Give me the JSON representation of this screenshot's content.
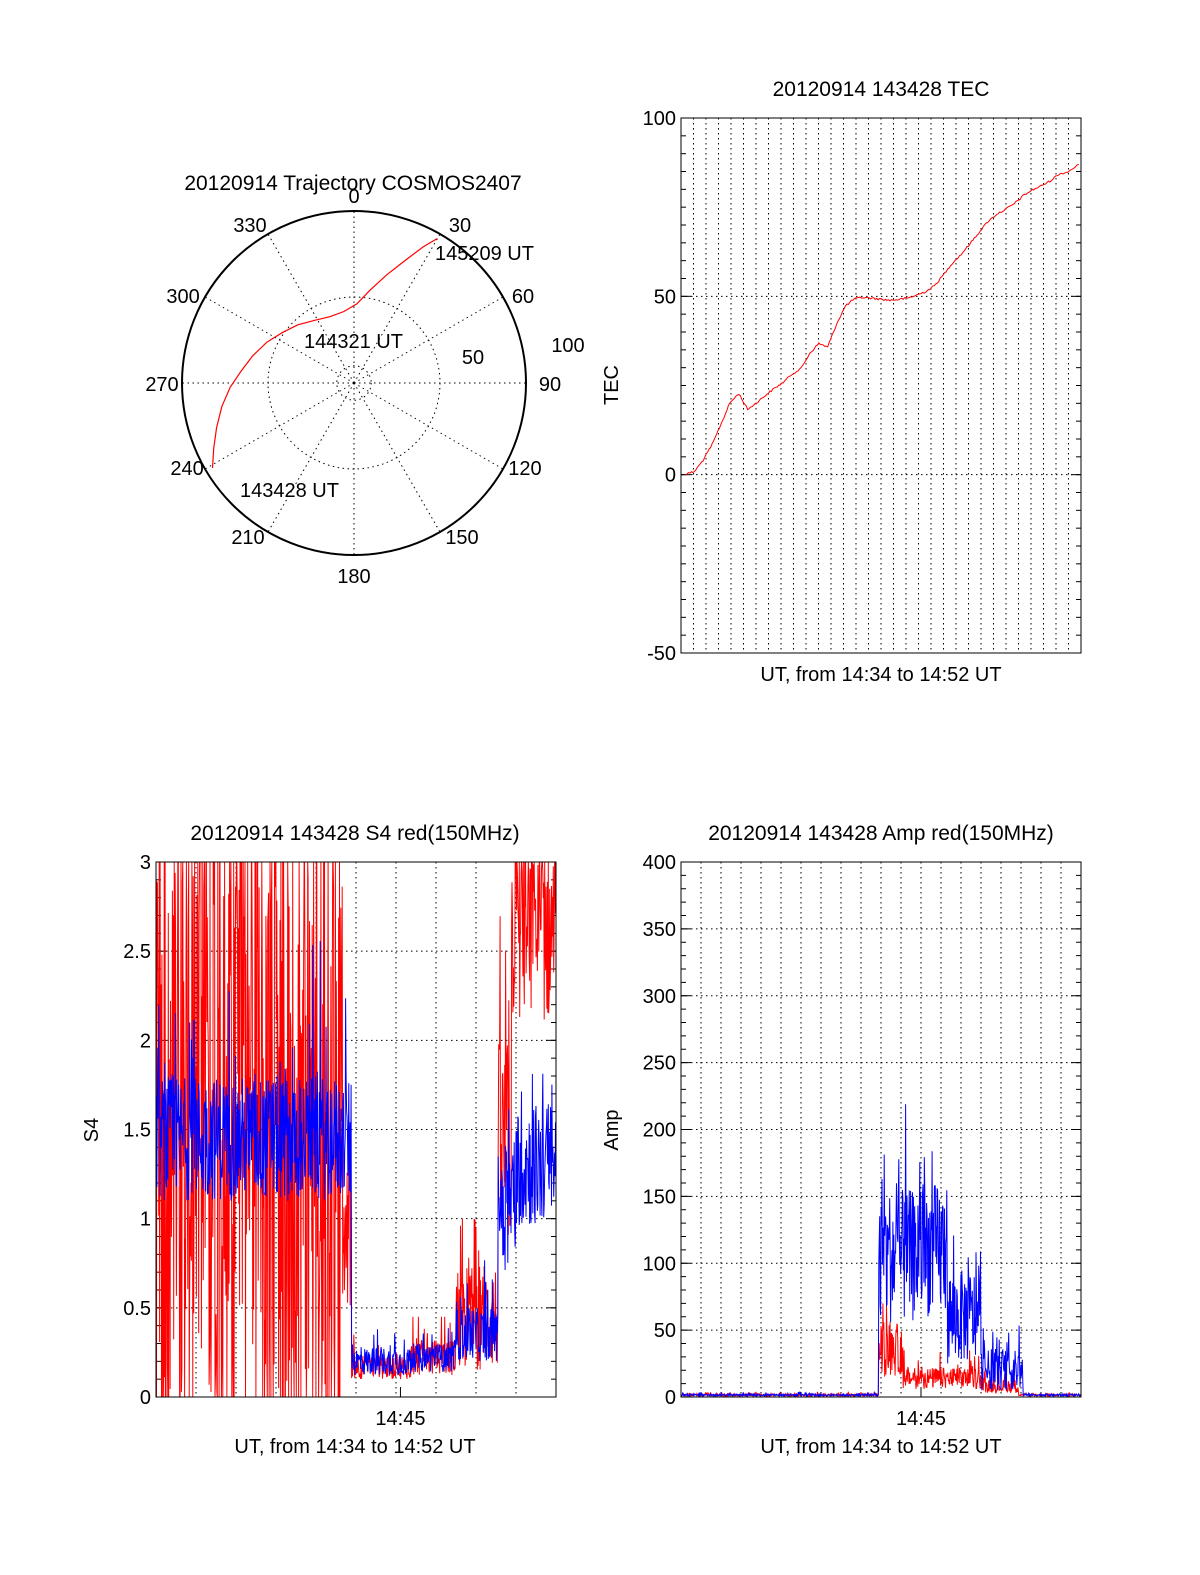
{
  "colors": {
    "red": "#ff0000",
    "blue": "#0000ff",
    "axis": "#000000"
  },
  "chart_data": [
    {
      "id": "trajectory",
      "type": "scatter",
      "subtype": "polar",
      "title": "20120914 Trajectory COSMOS2407",
      "azimuth_labels": [
        "0",
        "30",
        "60",
        "90",
        "120",
        "150",
        "180",
        "210",
        "240",
        "270",
        "300",
        "330"
      ],
      "radial_labels": [
        "50",
        "100"
      ],
      "rlim": [
        0,
        100
      ],
      "grid": true,
      "annotations": [
        {
          "text": "145209 UT",
          "azimuth": 30,
          "distance": 98
        },
        {
          "text": "144321 UT",
          "azimuth": 335,
          "distance": 30
        },
        {
          "text": "143428 UT",
          "azimuth": 240,
          "distance": 98
        }
      ],
      "series": [
        {
          "color": "#ff0000",
          "azimuth": [
            239,
            245,
            252,
            260,
            268,
            276,
            285,
            295,
            305,
            316,
            328,
            340,
            352,
            2,
            10,
            17,
            23,
            27,
            30
          ],
          "distance": [
            96,
            90,
            84,
            78,
            72,
            66,
            61,
            56,
            51,
            47,
            43,
            41,
            42,
            46,
            55,
            66,
            78,
            89,
            97
          ]
        }
      ]
    },
    {
      "id": "tec",
      "type": "line",
      "title": "20120914 143428 TEC",
      "ylabel": "TEC",
      "xlabel": "UT, from 14:34 to 14:52 UT",
      "ylim": [
        -50,
        100
      ],
      "yticks": [
        "-50",
        "0",
        "50",
        "100"
      ],
      "ytick_values": [
        -50,
        0,
        50,
        100
      ],
      "xlim": [
        0,
        18
      ],
      "xtick_labels": [],
      "grid": true,
      "series": [
        {
          "color": "#ff0000",
          "x": [
            0.2,
            0.6,
            1.0,
            1.4,
            1.8,
            2.2,
            2.6,
            3.0,
            3.4,
            3.8,
            4.2,
            4.6,
            5.0,
            5.4,
            5.8,
            6.2,
            6.6,
            7.0,
            7.4,
            7.8,
            8.2,
            8.6,
            9.0,
            9.4,
            9.8,
            10.2,
            10.6,
            11.0,
            11.4,
            11.8,
            12.2,
            12.6,
            13.0,
            13.4,
            13.8,
            14.2,
            14.6,
            15.0,
            15.4,
            15.8,
            16.2,
            16.6,
            17.0,
            17.4,
            17.9
          ],
          "y": [
            0,
            1,
            4,
            8,
            14,
            20,
            23,
            18,
            20,
            22,
            24,
            26,
            28,
            30,
            34,
            37,
            36,
            42,
            47,
            49,
            50,
            49.5,
            49,
            49,
            49.3,
            49.6,
            50,
            51,
            53,
            56,
            59,
            62,
            65,
            68,
            71,
            73,
            74,
            76,
            78,
            80,
            81,
            82,
            84,
            85,
            87
          ]
        }
      ]
    },
    {
      "id": "s4",
      "type": "line",
      "title": "20120914 143428 S4 red(150MHz)",
      "ylabel": "S4",
      "xlabel": "UT, from 14:34 to 14:52 UT",
      "ylim": [
        0,
        3
      ],
      "yticks": [
        "0",
        "0.5",
        "1",
        "1.5",
        "2",
        "2.5",
        "3"
      ],
      "ytick_values": [
        0,
        0.5,
        1,
        1.5,
        2,
        2.5,
        3
      ],
      "xlim": [
        0,
        18
      ],
      "xtick_labels": [
        {
          "x": 11,
          "label": "14:45"
        }
      ],
      "grid": true,
      "series": [
        {
          "color": "#ff0000",
          "segments": [
            {
              "x0": 0.0,
              "x1": 8.4,
              "base": 1.45,
              "amp": 1.5,
              "floor": 0,
              "ceil": 3,
              "spike": 0.22
            },
            {
              "x0": 8.4,
              "x1": 8.8,
              "base": 0.9,
              "amp": 0.4,
              "floor": 0.3,
              "ceil": 2.4,
              "spike": 0
            },
            {
              "x0": 8.8,
              "x1": 11.5,
              "base": 0.17,
              "amp": 0.07,
              "floor": 0.05,
              "ceil": 0.35,
              "spike": 0
            },
            {
              "x0": 11.5,
              "x1": 13.5,
              "base": 0.22,
              "amp": 0.1,
              "floor": 0.05,
              "ceil": 0.45,
              "spike": 0
            },
            {
              "x0": 13.5,
              "x1": 15.4,
              "base": 0.45,
              "amp": 0.3,
              "floor": 0.1,
              "ceil": 1.0,
              "spike": 0
            },
            {
              "x0": 15.4,
              "x1": 16.0,
              "base": 1.4,
              "amp": 0.6,
              "floor": 0.5,
              "ceil": 3,
              "spike": 0
            },
            {
              "x0": 16.0,
              "x1": 18.0,
              "base": 2.6,
              "amp": 0.5,
              "floor": 1.4,
              "ceil": 3,
              "spike": 0
            }
          ]
        },
        {
          "color": "#0000ff",
          "segments": [
            {
              "x0": 0.0,
              "x1": 8.8,
              "base": 1.45,
              "amp": 0.35,
              "floor": 0.9,
              "ceil": 2.7,
              "spike": 0
            },
            {
              "x0": 8.8,
              "x1": 11.5,
              "base": 0.2,
              "amp": 0.08,
              "floor": 0.1,
              "ceil": 0.38,
              "spike": 0
            },
            {
              "x0": 11.5,
              "x1": 13.5,
              "base": 0.22,
              "amp": 0.08,
              "floor": 0.1,
              "ceil": 0.4,
              "spike": 0
            },
            {
              "x0": 13.5,
              "x1": 15.4,
              "base": 0.35,
              "amp": 0.15,
              "floor": 0.15,
              "ceil": 0.8,
              "spike": 0
            },
            {
              "x0": 15.4,
              "x1": 16.2,
              "base": 1.1,
              "amp": 0.4,
              "floor": 0.5,
              "ceil": 2.0,
              "spike": 0
            },
            {
              "x0": 16.2,
              "x1": 18.0,
              "base": 1.3,
              "amp": 0.35,
              "floor": 0.8,
              "ceil": 2.3,
              "spike": 0
            }
          ]
        }
      ]
    },
    {
      "id": "amp",
      "type": "line",
      "title": "20120914 143428 Amp red(150MHz)",
      "ylabel": "Amp",
      "xlabel": "UT, from 14:34 to 14:52 UT",
      "ylim": [
        0,
        400
      ],
      "yticks": [
        "0",
        "50",
        "100",
        "150",
        "200",
        "250",
        "300",
        "350",
        "400"
      ],
      "ytick_values": [
        0,
        50,
        100,
        150,
        200,
        250,
        300,
        350,
        400
      ],
      "xlim": [
        0,
        18
      ],
      "xtick_labels": [
        {
          "x": 10.8,
          "label": "14:45"
        }
      ],
      "grid": true,
      "series": [
        {
          "color": "#ff0000",
          "segments": [
            {
              "x0": 0.0,
              "x1": 8.9,
              "base": 1.5,
              "amp": 0.8,
              "floor": 0,
              "ceil": 4,
              "spike": 0
            },
            {
              "x0": 8.9,
              "x1": 10.0,
              "base": 35,
              "amp": 20,
              "floor": 8,
              "ceil": 70,
              "spike": 0
            },
            {
              "x0": 10.0,
              "x1": 13.5,
              "base": 14,
              "amp": 8,
              "floor": 3,
              "ceil": 35,
              "spike": 0
            },
            {
              "x0": 13.5,
              "x1": 15.2,
              "base": 8,
              "amp": 5,
              "floor": 1,
              "ceil": 20,
              "spike": 0
            },
            {
              "x0": 15.2,
              "x1": 18.0,
              "base": 1.5,
              "amp": 0.8,
              "floor": 0,
              "ceil": 4,
              "spike": 0
            }
          ]
        },
        {
          "color": "#0000ff",
          "segments": [
            {
              "x0": 0.0,
              "x1": 8.9,
              "base": 1.5,
              "amp": 0.8,
              "floor": 0,
              "ceil": 4,
              "spike": 0
            },
            {
              "x0": 8.9,
              "x1": 10.6,
              "base": 105,
              "amp": 50,
              "floor": 30,
              "ceil": 310,
              "spike": 0
            },
            {
              "x0": 10.6,
              "x1": 12.0,
              "base": 110,
              "amp": 50,
              "floor": 30,
              "ceil": 270,
              "spike": 0
            },
            {
              "x0": 12.0,
              "x1": 13.5,
              "base": 60,
              "amp": 35,
              "floor": 10,
              "ceil": 150,
              "spike": 0
            },
            {
              "x0": 13.5,
              "x1": 15.4,
              "base": 20,
              "amp": 15,
              "floor": 2,
              "ceil": 60,
              "spike": 0
            },
            {
              "x0": 15.4,
              "x1": 18.0,
              "base": 1.5,
              "amp": 0.8,
              "floor": 0,
              "ceil": 4,
              "spike": 0
            }
          ]
        }
      ]
    }
  ]
}
